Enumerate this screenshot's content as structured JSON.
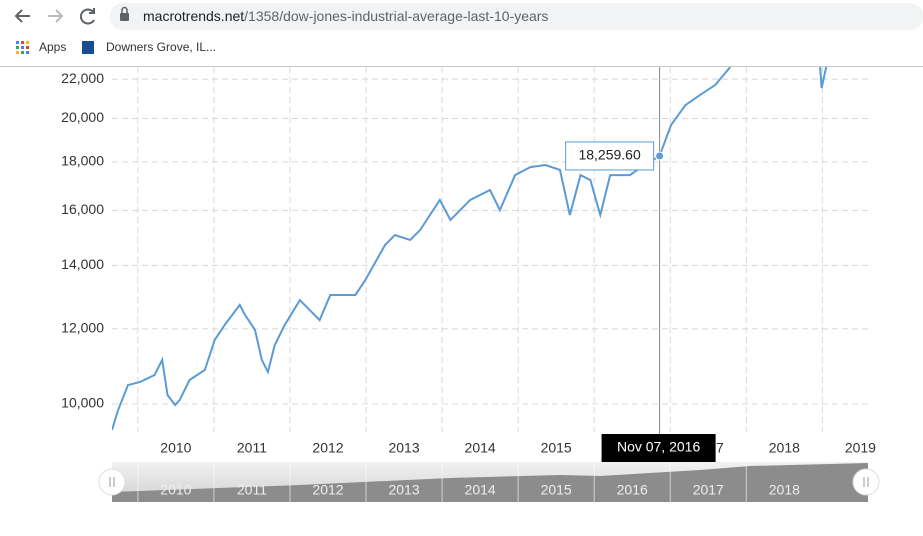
{
  "browser": {
    "url_domain": "macrotrends.net",
    "url_path": "/1358/dow-jones-industrial-average-last-10-years",
    "bookmarks": [
      "Apps",
      "Downers Grove, IL..."
    ]
  },
  "chart_data": {
    "type": "line",
    "log_y": true,
    "grid": true,
    "x": [
      2009.66,
      2009.74,
      2009.87,
      2010.03,
      2010.22,
      2010.32,
      2010.39,
      2010.49,
      2010.55,
      2010.68,
      2010.88,
      2011.01,
      2011.14,
      2011.34,
      2011.41,
      2011.54,
      2011.63,
      2011.71,
      2011.8,
      2011.93,
      2012.13,
      2012.39,
      2012.53,
      2012.86,
      2012.99,
      2013.25,
      2013.38,
      2013.58,
      2013.71,
      2013.97,
      2014.11,
      2014.37,
      2014.63,
      2014.76,
      2014.96,
      2015.16,
      2015.36,
      2015.55,
      2015.68,
      2015.82,
      2015.95,
      2016.08,
      2016.21,
      2016.47,
      2016.66,
      2016.86,
      2017.01,
      2017.2,
      2017.39,
      2017.59,
      2017.79,
      2018.5,
      2018.97,
      2018.99,
      2019.05
    ],
    "series": [
      {
        "name": "Dow Jones Industrial Average",
        "color": "#5b9bd5",
        "values": [
          9390,
          9855,
          10470,
          10550,
          10730,
          11130,
          10220,
          9975,
          10100,
          10600,
          10860,
          11680,
          12110,
          12720,
          12410,
          11970,
          11130,
          10810,
          11540,
          12110,
          12870,
          12260,
          13030,
          13030,
          13510,
          14710,
          15070,
          14890,
          15250,
          16410,
          15630,
          16410,
          16810,
          16010,
          17430,
          17770,
          17860,
          17650,
          15820,
          17430,
          17220,
          15820,
          17430,
          17430,
          17860,
          18259.6,
          19680,
          20660,
          21170,
          21690,
          22660,
          null,
          22660,
          21530,
          22660
        ]
      }
    ],
    "xlim": [
      2009.66,
      2019.6
    ],
    "ylim": [
      9343,
      22660
    ],
    "xticks": [
      {
        "value": 2010,
        "label": "2010"
      },
      {
        "value": 2011,
        "label": "2011"
      },
      {
        "value": 2012,
        "label": "2012"
      },
      {
        "value": 2013,
        "label": "2013"
      },
      {
        "value": 2014,
        "label": "2014"
      },
      {
        "value": 2015,
        "label": "2015"
      },
      {
        "value": 2016,
        "label": "2016"
      },
      {
        "value": 2017,
        "label": "2017"
      },
      {
        "value": 2018,
        "label": "2018"
      },
      {
        "value": 2019,
        "label": "2019"
      }
    ],
    "yticks": [
      {
        "value": 10000,
        "label": "10,000"
      },
      {
        "value": 12000,
        "label": "12,000"
      },
      {
        "value": 14000,
        "label": "14,000"
      },
      {
        "value": 16000,
        "label": "16,000"
      },
      {
        "value": 18000,
        "label": "18,000"
      },
      {
        "value": 20000,
        "label": "20,000"
      },
      {
        "value": 22000,
        "label": "22,000"
      }
    ],
    "tooltip": {
      "index": 45,
      "value_label": "18,259.60",
      "date": "Nov 07, 2016"
    },
    "navigator_labels": [
      "2010",
      "2011",
      "2012",
      "2013",
      "2014",
      "2015",
      "2016",
      "2017",
      "2018"
    ]
  }
}
